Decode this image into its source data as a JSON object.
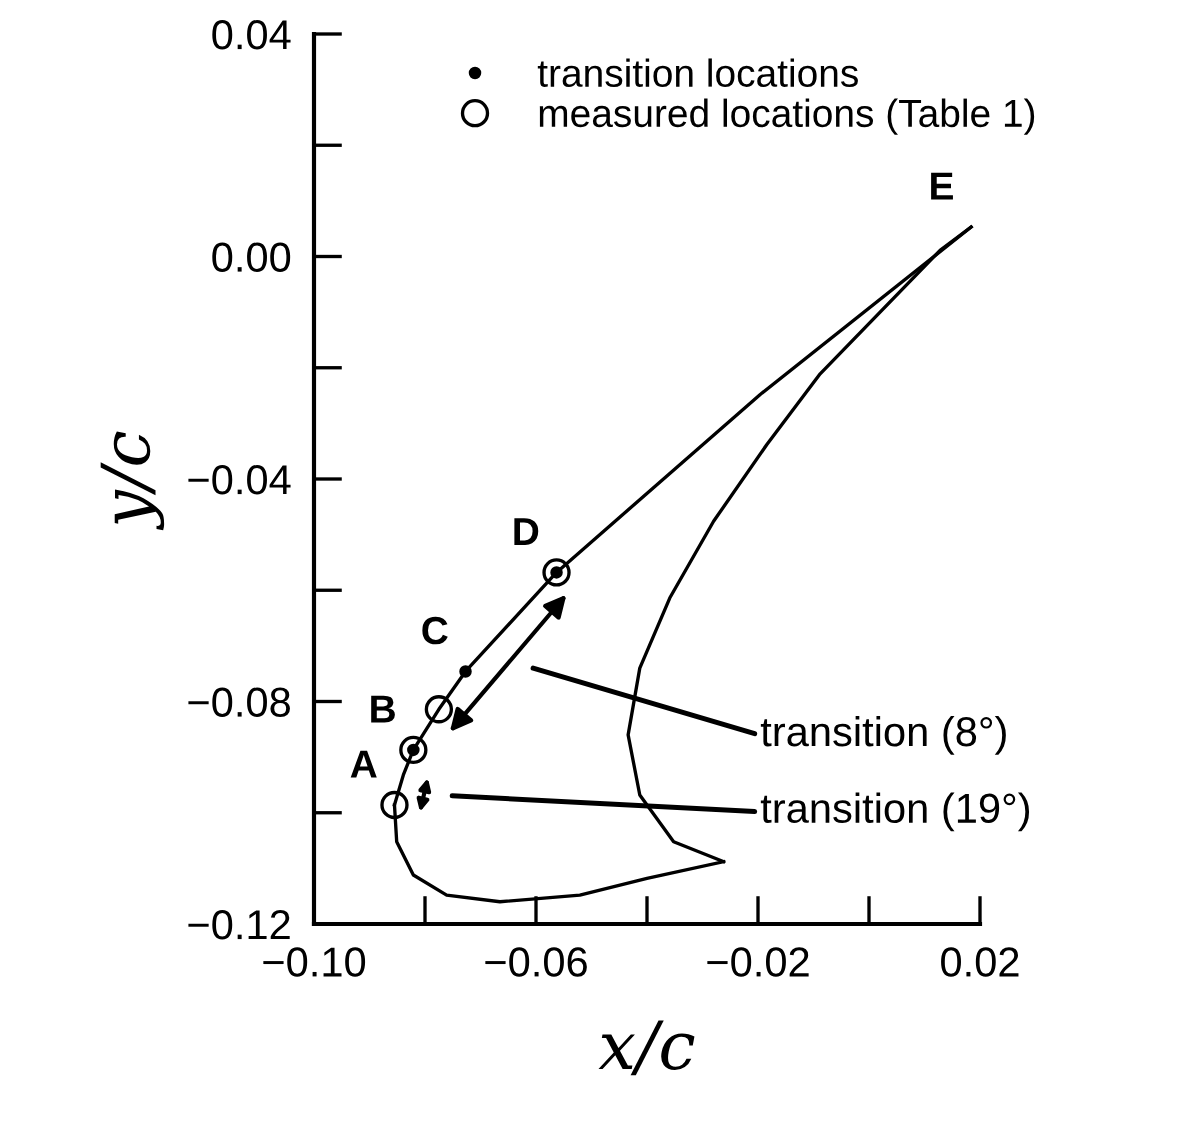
{
  "chart_data": {
    "type": "line",
    "xlabel": "x/c",
    "ylabel": "y/c",
    "xlim": [
      -0.1,
      0.02
    ],
    "ylim": [
      -0.12,
      0.04
    ],
    "xticks": [
      {
        "value": -0.1,
        "label": "−0.10"
      },
      {
        "value": -0.08,
        "label": null
      },
      {
        "value": -0.06,
        "label": "−0.06"
      },
      {
        "value": -0.04,
        "label": null
      },
      {
        "value": -0.02,
        "label": "−0.02"
      },
      {
        "value": 0.0,
        "label": null
      },
      {
        "value": 0.02,
        "label": "0.02"
      }
    ],
    "yticks": [
      {
        "value": -0.12,
        "label": "−0.12"
      },
      {
        "value": -0.1,
        "label": null
      },
      {
        "value": -0.08,
        "label": "−0.08"
      },
      {
        "value": -0.06,
        "label": null
      },
      {
        "value": -0.04,
        "label": "−0.04"
      },
      {
        "value": -0.02,
        "label": null
      },
      {
        "value": 0.0,
        "label": "0.00"
      },
      {
        "value": 0.02,
        "label": null
      },
      {
        "value": 0.04,
        "label": "0.04"
      }
    ],
    "grid": false,
    "legend": "top",
    "series": [
      {
        "color": "#000000",
        "x": [
          -0.0855,
          -0.0839,
          -0.0821,
          -0.0775,
          -0.0727,
          -0.0563,
          -0.0196,
          0.0184
        ],
        "values": [
          -0.0986,
          -0.0932,
          -0.0887,
          -0.0814,
          -0.0746,
          -0.0568,
          -0.0248,
          0.0053
        ]
      },
      {
        "color": "#000000",
        "x": [
          0.0184,
          0.0128,
          -0.0088,
          -0.0184,
          -0.028,
          -0.0359,
          -0.0413,
          -0.0434,
          -0.0413,
          -0.0352,
          -0.0262
        ],
        "values": [
          0.0053,
          0.0011,
          -0.0211,
          -0.0338,
          -0.0476,
          -0.0614,
          -0.074,
          -0.086,
          -0.0968,
          -0.1052,
          -0.1088
        ]
      },
      {
        "color": "#000000",
        "x": [
          -0.0262,
          -0.04,
          -0.0521,
          -0.0665,
          -0.0761,
          -0.0821,
          -0.0851,
          -0.0855
        ],
        "values": [
          -0.1088,
          -0.1118,
          -0.1148,
          -0.116,
          -0.1148,
          -0.1112,
          -0.1052,
          -0.0986
        ]
      },
      {
        "type": "scatter",
        "name": "transition locations",
        "color": "#000000",
        "marker": "circle",
        "x": [
          -0.0821,
          -0.0727,
          -0.0563
        ],
        "values": [
          -0.0887,
          -0.0746,
          -0.0568
        ]
      },
      {
        "type": "scatter",
        "name": "measured locations (Table 1)",
        "color": "#000000",
        "marker": "circle",
        "x": [
          -0.0855,
          -0.0821,
          -0.0775,
          -0.0563
        ],
        "values": [
          -0.0986,
          -0.0887,
          -0.0814,
          -0.0568
        ]
      }
    ],
    "annotations": [
      {
        "text": "A",
        "x": -0.0855,
        "y": -0.0986
      },
      {
        "text": "B",
        "x": -0.0821,
        "y": -0.0887
      },
      {
        "text": "C",
        "x": -0.0727,
        "y": -0.0746
      },
      {
        "text": "D",
        "x": -0.0563,
        "y": -0.0568
      },
      {
        "text": "E",
        "x": 0.0184,
        "y": 0.0053
      },
      "transition (8°)",
      "transition (19°)"
    ]
  }
}
